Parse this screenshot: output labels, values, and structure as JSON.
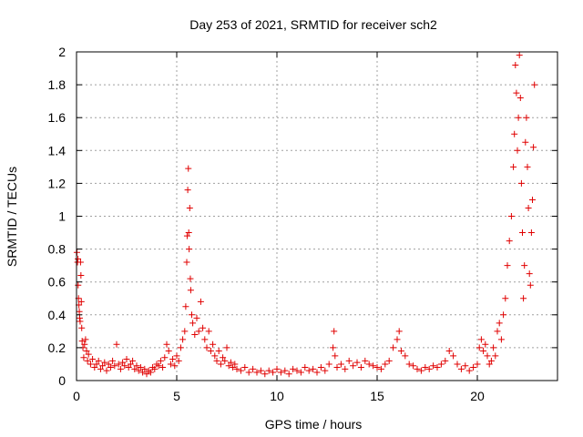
{
  "chart_data": {
    "type": "scatter",
    "title": "Day 253 of 2021, SRMTID for receiver sch2",
    "xlabel": "GPS time / hours",
    "ylabel": "SRMTID / TECUs",
    "xlim": [
      0,
      24
    ],
    "ylim": [
      0,
      2
    ],
    "xticks": [
      0,
      5,
      10,
      15,
      20
    ],
    "xtick_labels": [
      "0",
      "5",
      "10",
      "15",
      "20"
    ],
    "yticks": [
      0,
      0.2,
      0.4,
      0.6,
      0.8,
      1,
      1.2,
      1.4,
      1.6,
      1.8,
      2
    ],
    "ytick_labels": [
      "0",
      "0.2",
      "0.4",
      "0.6",
      "0.8",
      "1",
      "1.2",
      "1.4",
      "1.6",
      "1.8",
      "2"
    ],
    "grid": true,
    "marker": "+",
    "series": [
      {
        "name": "sch2",
        "color": "#e00000",
        "points": [
          [
            0.02,
            0.78
          ],
          [
            0.05,
            0.72
          ],
          [
            0.07,
            0.74
          ],
          [
            0.08,
            0.58
          ],
          [
            0.1,
            0.5
          ],
          [
            0.12,
            0.46
          ],
          [
            0.14,
            0.42
          ],
          [
            0.16,
            0.38
          ],
          [
            0.18,
            0.36
          ],
          [
            0.2,
            0.72
          ],
          [
            0.22,
            0.64
          ],
          [
            0.24,
            0.48
          ],
          [
            0.26,
            0.32
          ],
          [
            0.28,
            0.24
          ],
          [
            0.32,
            0.2
          ],
          [
            0.36,
            0.14
          ],
          [
            0.4,
            0.22
          ],
          [
            0.45,
            0.25
          ],
          [
            0.5,
            0.18
          ],
          [
            0.55,
            0.12
          ],
          [
            0.6,
            0.16
          ],
          [
            0.7,
            0.1
          ],
          [
            0.8,
            0.13
          ],
          [
            0.9,
            0.08
          ],
          [
            1.0,
            0.1
          ],
          [
            1.1,
            0.12
          ],
          [
            1.2,
            0.07
          ],
          [
            1.3,
            0.09
          ],
          [
            1.4,
            0.11
          ],
          [
            1.5,
            0.06
          ],
          [
            1.6,
            0.1
          ],
          [
            1.7,
            0.08
          ],
          [
            1.8,
            0.12
          ],
          [
            1.9,
            0.09
          ],
          [
            2.0,
            0.22
          ],
          [
            2.1,
            0.1
          ],
          [
            2.2,
            0.07
          ],
          [
            2.3,
            0.11
          ],
          [
            2.4,
            0.09
          ],
          [
            2.5,
            0.13
          ],
          [
            2.6,
            0.08
          ],
          [
            2.7,
            0.1
          ],
          [
            2.8,
            0.12
          ],
          [
            2.9,
            0.07
          ],
          [
            3.0,
            0.09
          ],
          [
            3.1,
            0.06
          ],
          [
            3.2,
            0.08
          ],
          [
            3.3,
            0.05
          ],
          [
            3.4,
            0.07
          ],
          [
            3.5,
            0.04
          ],
          [
            3.6,
            0.06
          ],
          [
            3.7,
            0.05
          ],
          [
            3.8,
            0.08
          ],
          [
            3.9,
            0.07
          ],
          [
            4.0,
            0.1
          ],
          [
            4.1,
            0.09
          ],
          [
            4.2,
            0.12
          ],
          [
            4.3,
            0.08
          ],
          [
            4.4,
            0.14
          ],
          [
            4.5,
            0.22
          ],
          [
            4.6,
            0.18
          ],
          [
            4.7,
            0.1
          ],
          [
            4.8,
            0.13
          ],
          [
            4.9,
            0.09
          ],
          [
            5.0,
            0.15
          ],
          [
            5.1,
            0.12
          ],
          [
            5.2,
            0.2
          ],
          [
            5.3,
            0.25
          ],
          [
            5.4,
            0.3
          ],
          [
            5.45,
            0.45
          ],
          [
            5.5,
            0.72
          ],
          [
            5.52,
            0.88
          ],
          [
            5.55,
            1.16
          ],
          [
            5.58,
            1.29
          ],
          [
            5.6,
            0.9
          ],
          [
            5.62,
            0.8
          ],
          [
            5.65,
            1.05
          ],
          [
            5.68,
            0.62
          ],
          [
            5.7,
            0.55
          ],
          [
            5.75,
            0.4
          ],
          [
            5.8,
            0.35
          ],
          [
            5.9,
            0.28
          ],
          [
            6.0,
            0.38
          ],
          [
            6.1,
            0.3
          ],
          [
            6.2,
            0.48
          ],
          [
            6.3,
            0.32
          ],
          [
            6.4,
            0.25
          ],
          [
            6.5,
            0.2
          ],
          [
            6.6,
            0.3
          ],
          [
            6.7,
            0.18
          ],
          [
            6.8,
            0.22
          ],
          [
            6.9,
            0.15
          ],
          [
            7.0,
            0.12
          ],
          [
            7.1,
            0.18
          ],
          [
            7.2,
            0.1
          ],
          [
            7.3,
            0.14
          ],
          [
            7.4,
            0.12
          ],
          [
            7.5,
            0.2
          ],
          [
            7.6,
            0.09
          ],
          [
            7.7,
            0.11
          ],
          [
            7.8,
            0.08
          ],
          [
            7.9,
            0.1
          ],
          [
            8.0,
            0.07
          ],
          [
            8.2,
            0.06
          ],
          [
            8.4,
            0.08
          ],
          [
            8.6,
            0.05
          ],
          [
            8.8,
            0.07
          ],
          [
            9.0,
            0.05
          ],
          [
            9.2,
            0.06
          ],
          [
            9.4,
            0.04
          ],
          [
            9.6,
            0.06
          ],
          [
            9.8,
            0.05
          ],
          [
            10.0,
            0.07
          ],
          [
            10.2,
            0.05
          ],
          [
            10.4,
            0.06
          ],
          [
            10.6,
            0.04
          ],
          [
            10.8,
            0.07
          ],
          [
            11.0,
            0.06
          ],
          [
            11.2,
            0.05
          ],
          [
            11.4,
            0.08
          ],
          [
            11.6,
            0.06
          ],
          [
            11.8,
            0.07
          ],
          [
            12.0,
            0.05
          ],
          [
            12.2,
            0.08
          ],
          [
            12.4,
            0.06
          ],
          [
            12.6,
            0.1
          ],
          [
            12.8,
            0.2
          ],
          [
            12.85,
            0.3
          ],
          [
            12.9,
            0.15
          ],
          [
            13.0,
            0.08
          ],
          [
            13.2,
            0.1
          ],
          [
            13.4,
            0.07
          ],
          [
            13.6,
            0.12
          ],
          [
            13.8,
            0.09
          ],
          [
            14.0,
            0.11
          ],
          [
            14.2,
            0.08
          ],
          [
            14.4,
            0.12
          ],
          [
            14.6,
            0.1
          ],
          [
            14.8,
            0.09
          ],
          [
            15.0,
            0.08
          ],
          [
            15.2,
            0.07
          ],
          [
            15.4,
            0.1
          ],
          [
            15.6,
            0.12
          ],
          [
            15.8,
            0.2
          ],
          [
            16.0,
            0.25
          ],
          [
            16.1,
            0.3
          ],
          [
            16.2,
            0.18
          ],
          [
            16.4,
            0.15
          ],
          [
            16.6,
            0.1
          ],
          [
            16.8,
            0.09
          ],
          [
            17.0,
            0.07
          ],
          [
            17.2,
            0.06
          ],
          [
            17.4,
            0.08
          ],
          [
            17.6,
            0.07
          ],
          [
            17.8,
            0.09
          ],
          [
            18.0,
            0.08
          ],
          [
            18.2,
            0.1
          ],
          [
            18.4,
            0.12
          ],
          [
            18.6,
            0.18
          ],
          [
            18.8,
            0.15
          ],
          [
            19.0,
            0.1
          ],
          [
            19.2,
            0.07
          ],
          [
            19.4,
            0.09
          ],
          [
            19.6,
            0.06
          ],
          [
            19.8,
            0.08
          ],
          [
            20.0,
            0.1
          ],
          [
            20.1,
            0.2
          ],
          [
            20.2,
            0.25
          ],
          [
            20.3,
            0.18
          ],
          [
            20.4,
            0.22
          ],
          [
            20.5,
            0.15
          ],
          [
            20.6,
            0.1
          ],
          [
            20.7,
            0.12
          ],
          [
            20.8,
            0.2
          ],
          [
            20.9,
            0.15
          ],
          [
            21.0,
            0.3
          ],
          [
            21.1,
            0.35
          ],
          [
            21.2,
            0.25
          ],
          [
            21.3,
            0.4
          ],
          [
            21.4,
            0.5
          ],
          [
            21.5,
            0.7
          ],
          [
            21.6,
            0.85
          ],
          [
            21.7,
            1.0
          ],
          [
            21.8,
            1.3
          ],
          [
            21.85,
            1.5
          ],
          [
            21.9,
            1.92
          ],
          [
            21.95,
            1.75
          ],
          [
            22.0,
            1.4
          ],
          [
            22.05,
            1.6
          ],
          [
            22.1,
            1.98
          ],
          [
            22.15,
            1.72
          ],
          [
            22.2,
            1.2
          ],
          [
            22.25,
            0.9
          ],
          [
            22.3,
            0.5
          ],
          [
            22.35,
            0.7
          ],
          [
            22.4,
            1.45
          ],
          [
            22.45,
            1.6
          ],
          [
            22.5,
            1.3
          ],
          [
            22.55,
            1.05
          ],
          [
            22.6,
            0.65
          ],
          [
            22.65,
            0.58
          ],
          [
            22.7,
            0.9
          ],
          [
            22.75,
            1.1
          ],
          [
            22.8,
            1.42
          ],
          [
            22.85,
            1.8
          ]
        ]
      }
    ]
  }
}
